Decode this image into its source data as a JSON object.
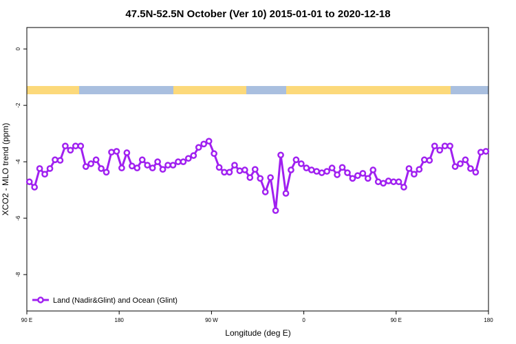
{
  "chart_data": {
    "type": "line",
    "title": "47.5N-52.5N October (Ver 10)   2015-01-01 to 2020-12-18",
    "x_label": "Longitude (deg E)",
    "y_label": "XCO2 - MLO trend (ppm)",
    "x": [
      92.5,
      97.5,
      102.5,
      107.5,
      112.5,
      117.5,
      122.5,
      127.5,
      132.5,
      137.5,
      142.5,
      147.5,
      152.5,
      157.5,
      162.5,
      167.5,
      172.5,
      177.5,
      182.5,
      187.5,
      192.5,
      197.5,
      202.5,
      207.5,
      212.5,
      217.5,
      222.5,
      227.5,
      232.5,
      237.5,
      242.5,
      247.5,
      252.5,
      257.5,
      262.5,
      267.5,
      272.5,
      277.5,
      282.5,
      287.5,
      292.5,
      297.5,
      302.5,
      307.5,
      312.5,
      317.5,
      322.5,
      327.5,
      332.5,
      337.5,
      342.5,
      347.5,
      352.5,
      357.5,
      362.5,
      367.5,
      372.5,
      377.5,
      382.5,
      387.5,
      392.5,
      397.5,
      402.5,
      407.5,
      412.5,
      417.5,
      422.5,
      427.5,
      432.5,
      437.5,
      442.5,
      447.5,
      452.5,
      457.5,
      462.5,
      467.5,
      472.5,
      477.5,
      482.5,
      487.5,
      492.5,
      497.5,
      502.5,
      507.5,
      512.5,
      517.5,
      522.5,
      527.5,
      532.5,
      537.5
    ],
    "series": [
      {
        "name": "Land (Nadir&Glint) and Ocean (Glint)",
        "color": "#a020f0",
        "values": [
          -4.71,
          -4.9,
          -4.24,
          -4.44,
          -4.24,
          -3.93,
          -3.95,
          -3.44,
          -3.59,
          -3.44,
          -3.44,
          -4.17,
          -4.07,
          -3.93,
          -4.24,
          -4.37,
          -3.66,
          -3.63,
          -4.22,
          -3.68,
          -4.15,
          -4.22,
          -3.93,
          -4.12,
          -4.22,
          -4.0,
          -4.27,
          -4.12,
          -4.12,
          -4.0,
          -4.0,
          -3.88,
          -3.78,
          -3.49,
          -3.37,
          -3.27,
          -3.71,
          -4.2,
          -4.37,
          -4.37,
          -4.12,
          -4.32,
          -4.29,
          -4.56,
          -4.27,
          -4.59,
          -5.07,
          -4.56,
          -5.73,
          -3.76,
          -5.12,
          -4.29,
          -3.93,
          -4.07,
          -4.22,
          -4.29,
          -4.34,
          -4.39,
          -4.34,
          -4.22,
          -4.46,
          -4.2,
          -4.39,
          -4.59,
          -4.49,
          -4.41,
          -4.59,
          -4.29,
          -4.71,
          -4.76,
          -4.68,
          -4.71,
          -4.71,
          -4.9,
          -4.24,
          -4.44,
          -4.27,
          -3.93,
          -3.95,
          -3.44,
          -3.59,
          -3.44,
          -3.44,
          -4.17,
          -4.07,
          -3.93,
          -4.24,
          -4.37,
          -3.66,
          -3.63
        ]
      }
    ],
    "xlim": [
      90,
      540
    ],
    "xticks": [
      {
        "value": 90,
        "label": "90 E"
      },
      180,
      {
        "value": 270,
        "label": "90 W"
      },
      {
        "value": 360,
        "label": "0"
      },
      {
        "value": 450,
        "label": "90 E"
      },
      {
        "value": 540,
        "label": "180"
      }
    ],
    "ylim": [
      -9.29,
      0.76
    ],
    "yticks": [
      0,
      -2,
      -4,
      -6,
      -8
    ],
    "legend": "bottom-left"
  }
}
